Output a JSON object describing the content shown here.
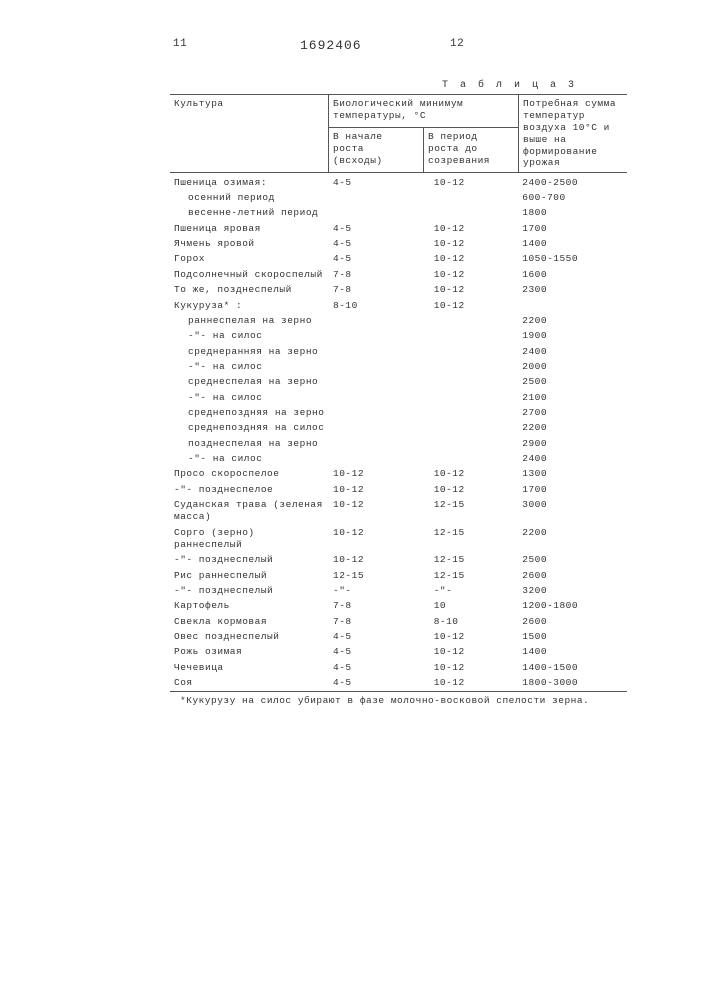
{
  "top": {
    "left_page": "11",
    "doc_number": "1692406",
    "right_page": "12"
  },
  "caption": "Т а б л и ц а  3",
  "header": {
    "col0": "Культура",
    "bio_group": "Биологический минимум температуры, °С",
    "col1": "В начале роста (всходы)",
    "col2": "В период роста до созревания",
    "col3": "Потребная сумма температур воздуха 10°С и выше на формирование урожая"
  },
  "rows": [
    {
      "c0": "Пшеница озимая:",
      "c1": "4-5",
      "c2": "10-12",
      "c3": "2400-2500"
    },
    {
      "c0": "осенний период",
      "indent": 1,
      "c1": "",
      "c2": "",
      "c3": "600-700"
    },
    {
      "c0": "весенне-летний период",
      "indent": 1,
      "c1": "",
      "c2": "",
      "c3": "1800"
    },
    {
      "c0": "Пшеница яровая",
      "c1": "4-5",
      "c2": "10-12",
      "c3": "1700"
    },
    {
      "c0": "Ячмень яровой",
      "c1": "4-5",
      "c2": "10-12",
      "c3": "1400"
    },
    {
      "c0": "Горох",
      "c1": "4-5",
      "c2": "10-12",
      "c3": "1050-1550"
    },
    {
      "c0": "Подсолнечный скороспелый",
      "c1": "7-8",
      "c2": "10-12",
      "c3": "1600"
    },
    {
      "c0": "То же, позднеспелый",
      "c1": "7-8",
      "c2": "10-12",
      "c3": "2300"
    },
    {
      "c0": "Кукуруза* :",
      "c1": "8-10",
      "c2": "10-12",
      "c3": ""
    },
    {
      "c0": "раннеспелая на зерно",
      "indent": 1,
      "c1": "",
      "c2": "",
      "c3": "2200"
    },
    {
      "c0": "-\"-         на силос",
      "indent": 1,
      "c1": "",
      "c2": "",
      "c3": "1900"
    },
    {
      "c0": "среднеранняя на зерно",
      "indent": 1,
      "c1": "",
      "c2": "",
      "c3": "2400"
    },
    {
      "c0": "-\"-         на силос",
      "indent": 1,
      "c1": "",
      "c2": "",
      "c3": "2000"
    },
    {
      "c0": "среднеспелая на зерно",
      "indent": 1,
      "c1": "",
      "c2": "",
      "c3": "2500"
    },
    {
      "c0": "-\"-         на силос",
      "indent": 1,
      "c1": "",
      "c2": "",
      "c3": "2100"
    },
    {
      "c0": "среднепоздняя на зерно",
      "indent": 1,
      "c1": "",
      "c2": "",
      "c3": "2700"
    },
    {
      "c0": "среднепоздняя на силос",
      "indent": 1,
      "c1": "",
      "c2": "",
      "c3": "2200"
    },
    {
      "c0": "позднеспелая на зерно",
      "indent": 1,
      "c1": "",
      "c2": "",
      "c3": "2900"
    },
    {
      "c0": "-\"-         на силос",
      "indent": 1,
      "c1": "",
      "c2": "",
      "c3": "2400"
    },
    {
      "c0": "Просо скороспелое",
      "c1": "10-12",
      "c2": "10-12",
      "c3": "1300"
    },
    {
      "c0": "-\"-   позднеспелое",
      "c1": "10-12",
      "c2": "10-12",
      "c3": "1700"
    },
    {
      "c0": "Суданская трава (зеленая масса)",
      "c1": "10-12",
      "c2": "12-15",
      "c3": "3000"
    },
    {
      "c0": "Сорго (зерно) раннеспелый",
      "c1": "10-12",
      "c2": "12-15",
      "c3": "2200"
    },
    {
      "c0": "-\"-   позднеспелый",
      "c1": "10-12",
      "c2": "12-15",
      "c3": "2500"
    },
    {
      "c0": "Рис раннеспелый",
      "c1": "12-15",
      "c2": "12-15",
      "c3": "2600"
    },
    {
      "c0": "-\"-  позднеспелый",
      "c1": "-\"-",
      "c2": "-\"-",
      "c3": "3200"
    },
    {
      "c0": "Картофель",
      "c1": "7-8",
      "c2": "10",
      "c3": "1200-1800"
    },
    {
      "c0": "Свекла кормовая",
      "c1": "7-8",
      "c2": "8-10",
      "c3": "2600"
    },
    {
      "c0": "Овес позднеспелый",
      "c1": "4-5",
      "c2": "10-12",
      "c3": "1500"
    },
    {
      "c0": "Рожь озимая",
      "c1": "4-5",
      "c2": "10-12",
      "c3": "1400"
    },
    {
      "c0": "Чечевица",
      "c1": "4-5",
      "c2": "10-12",
      "c3": "1400-1500"
    },
    {
      "c0": "Соя",
      "c1": "4-5",
      "c2": "10-12",
      "c3": "1800-3000"
    }
  ],
  "footnote": "*Кукурузу на силос убирают в фазе молочно-восковой спелости зерна."
}
